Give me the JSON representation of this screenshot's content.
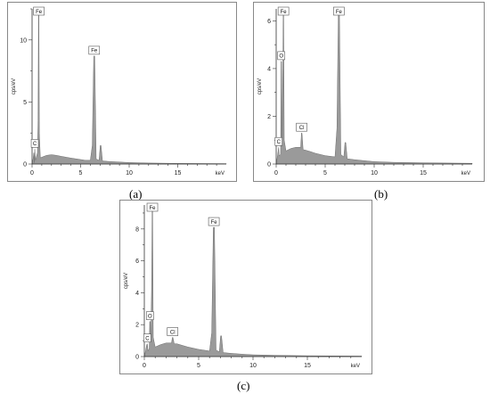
{
  "colors": {
    "spectrum_fill": "#9a9a9a",
    "spectrum_stroke": "#6f6f6f",
    "frame": "#888888",
    "axis": "#333333",
    "peak_label_border": "#555555"
  },
  "chart_data": [
    {
      "type": "area",
      "caption": "(a)",
      "xlabel": "keV",
      "ylabel": "cps/eV",
      "xlim": [
        0,
        20
      ],
      "ylim": [
        0,
        12.5
      ],
      "x_ticks": [
        0,
        5,
        10,
        15
      ],
      "y_ticks": [
        0,
        5,
        10
      ],
      "series": [
        {
          "values": [
            [
              0,
              0
            ],
            [
              0.1,
              0.4
            ],
            [
              0.18,
              0.9
            ],
            [
              0.22,
              0.1
            ],
            [
              0.28,
              1.2
            ],
            [
              0.35,
              0.3
            ],
            [
              0.55,
              0.9
            ],
            [
              0.62,
              3.5
            ],
            [
              0.66,
              12.2
            ],
            [
              0.7,
              12.2
            ],
            [
              0.75,
              2.5
            ],
            [
              0.85,
              0.5
            ],
            [
              1.0,
              0.55
            ],
            [
              1.5,
              0.7
            ],
            [
              2.0,
              0.75
            ],
            [
              2.5,
              0.7
            ],
            [
              3.0,
              0.62
            ],
            [
              3.5,
              0.55
            ],
            [
              4.0,
              0.48
            ],
            [
              4.5,
              0.42
            ],
            [
              5.0,
              0.36
            ],
            [
              5.5,
              0.3
            ],
            [
              6.0,
              0.3
            ],
            [
              6.2,
              1.5
            ],
            [
              6.35,
              8.7
            ],
            [
              6.45,
              8.7
            ],
            [
              6.6,
              0.4
            ],
            [
              6.9,
              0.3
            ],
            [
              7.02,
              1.5
            ],
            [
              7.1,
              1.5
            ],
            [
              7.25,
              0.25
            ],
            [
              8.0,
              0.2
            ],
            [
              9.0,
              0.16
            ],
            [
              10.0,
              0.12
            ],
            [
              12.0,
              0.08
            ],
            [
              15.0,
              0.05
            ],
            [
              20.0,
              0.03
            ]
          ]
        }
      ],
      "peak_labels": [
        {
          "text": "Fe",
          "x": 0.7,
          "y": 12.2
        },
        {
          "text": "Fe",
          "x": 6.4,
          "y": 8.7
        },
        {
          "text": "C",
          "x": 0.28,
          "y": 1.2
        }
      ]
    },
    {
      "type": "area",
      "caption": "(b)",
      "xlabel": "keV",
      "ylabel": "cps/eV",
      "xlim": [
        0,
        20
      ],
      "ylim": [
        0,
        6.5
      ],
      "x_ticks": [
        0,
        5,
        10,
        15
      ],
      "y_ticks": [
        0,
        2,
        4,
        6
      ],
      "series": [
        {
          "values": [
            [
              0,
              0
            ],
            [
              0.1,
              0.25
            ],
            [
              0.2,
              0.55
            ],
            [
              0.25,
              0.7
            ],
            [
              0.3,
              0.35
            ],
            [
              0.45,
              0.4
            ],
            [
              0.5,
              4.3
            ],
            [
              0.55,
              4.3
            ],
            [
              0.6,
              1.0
            ],
            [
              0.68,
              4.0
            ],
            [
              0.72,
              6.5
            ],
            [
              0.76,
              6.5
            ],
            [
              0.82,
              1.0
            ],
            [
              1.0,
              0.55
            ],
            [
              1.5,
              0.65
            ],
            [
              2.0,
              0.7
            ],
            [
              2.5,
              0.7
            ],
            [
              2.58,
              1.3
            ],
            [
              2.63,
              1.3
            ],
            [
              2.75,
              0.6
            ],
            [
              3.0,
              0.58
            ],
            [
              3.5,
              0.52
            ],
            [
              4.0,
              0.45
            ],
            [
              5.0,
              0.35
            ],
            [
              6.0,
              0.3
            ],
            [
              6.2,
              1.5
            ],
            [
              6.35,
              6.5
            ],
            [
              6.45,
              6.5
            ],
            [
              6.6,
              0.4
            ],
            [
              6.9,
              0.3
            ],
            [
              7.02,
              0.9
            ],
            [
              7.1,
              0.9
            ],
            [
              7.25,
              0.22
            ],
            [
              8.0,
              0.18
            ],
            [
              9.0,
              0.14
            ],
            [
              10.0,
              0.1
            ],
            [
              12.0,
              0.07
            ],
            [
              15.0,
              0.05
            ],
            [
              20.0,
              0.03
            ]
          ]
        }
      ],
      "peak_labels": [
        {
          "text": "Fe",
          "x": 0.74,
          "y": 6.5
        },
        {
          "text": "Fe",
          "x": 6.4,
          "y": 6.5
        },
        {
          "text": "O",
          "x": 0.52,
          "y": 4.3
        },
        {
          "text": "Cl",
          "x": 2.6,
          "y": 1.3
        },
        {
          "text": "C",
          "x": 0.25,
          "y": 0.7
        }
      ]
    },
    {
      "type": "area",
      "caption": "(c)",
      "xlabel": "keV",
      "ylabel": "cps/eV",
      "xlim": [
        0,
        20
      ],
      "ylim": [
        0,
        9.5
      ],
      "x_ticks": [
        0,
        5,
        10,
        15
      ],
      "y_ticks": [
        0,
        2,
        4,
        6,
        8
      ],
      "series": [
        {
          "values": [
            [
              0,
              0
            ],
            [
              0.1,
              0.3
            ],
            [
              0.22,
              0.75
            ],
            [
              0.28,
              0.8
            ],
            [
              0.34,
              0.35
            ],
            [
              0.45,
              0.5
            ],
            [
              0.5,
              2.2
            ],
            [
              0.55,
              2.2
            ],
            [
              0.6,
              1.0
            ],
            [
              0.68,
              5.0
            ],
            [
              0.72,
              9.5
            ],
            [
              0.76,
              9.5
            ],
            [
              0.82,
              1.2
            ],
            [
              1.0,
              0.6
            ],
            [
              1.5,
              0.75
            ],
            [
              2.0,
              0.85
            ],
            [
              2.5,
              0.85
            ],
            [
              2.58,
              1.2
            ],
            [
              2.63,
              1.2
            ],
            [
              2.75,
              0.8
            ],
            [
              3.0,
              0.8
            ],
            [
              3.5,
              0.7
            ],
            [
              4.0,
              0.6
            ],
            [
              5.0,
              0.45
            ],
            [
              6.0,
              0.35
            ],
            [
              6.2,
              1.5
            ],
            [
              6.35,
              8.1
            ],
            [
              6.45,
              8.1
            ],
            [
              6.6,
              0.4
            ],
            [
              6.9,
              0.3
            ],
            [
              7.02,
              1.3
            ],
            [
              7.1,
              1.3
            ],
            [
              7.25,
              0.25
            ],
            [
              8.0,
              0.2
            ],
            [
              9.0,
              0.15
            ],
            [
              10.0,
              0.11
            ],
            [
              12.0,
              0.08
            ],
            [
              15.0,
              0.05
            ],
            [
              20.0,
              0.03
            ]
          ]
        }
      ],
      "peak_labels": [
        {
          "text": "Fe",
          "x": 0.74,
          "y": 9.5
        },
        {
          "text": "Fe",
          "x": 6.4,
          "y": 8.1
        },
        {
          "text": "O",
          "x": 0.52,
          "y": 2.2
        },
        {
          "text": "Cl",
          "x": 2.6,
          "y": 1.2
        },
        {
          "text": "C",
          "x": 0.28,
          "y": 0.8
        }
      ]
    }
  ]
}
